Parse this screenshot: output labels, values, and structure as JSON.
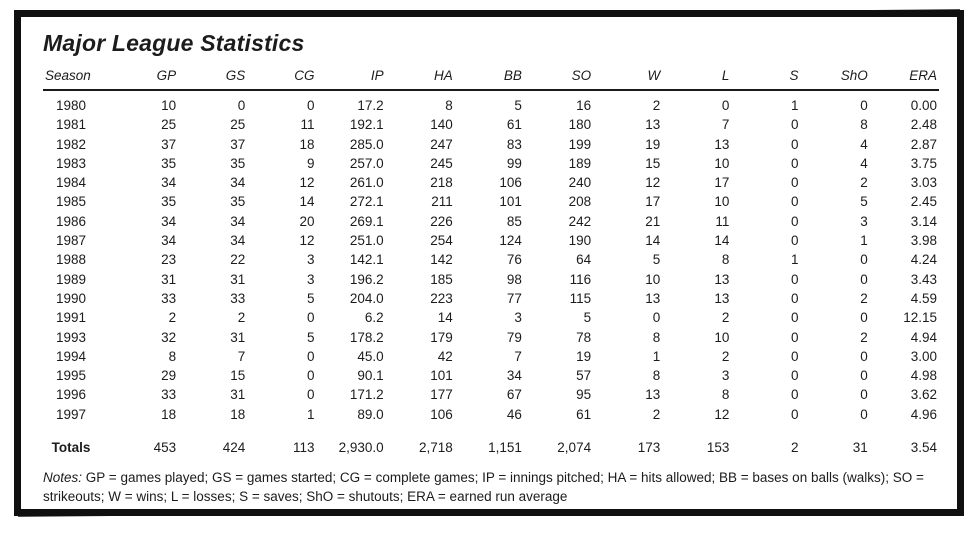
{
  "title": "Major League Statistics",
  "colors": {
    "frame": "#101010",
    "paper": "#ffffff",
    "text": "#1c1c1c"
  },
  "table": {
    "columns": [
      "Season",
      "GP",
      "GS",
      "CG",
      "IP",
      "HA",
      "BB",
      "SO",
      "W",
      "L",
      "S",
      "ShO",
      "ERA"
    ],
    "rows": [
      [
        "1980",
        "10",
        "0",
        "0",
        "17.2",
        "8",
        "5",
        "16",
        "2",
        "0",
        "1",
        "0",
        "0.00"
      ],
      [
        "1981",
        "25",
        "25",
        "11",
        "192.1",
        "140",
        "61",
        "180",
        "13",
        "7",
        "0",
        "8",
        "2.48"
      ],
      [
        "1982",
        "37",
        "37",
        "18",
        "285.0",
        "247",
        "83",
        "199",
        "19",
        "13",
        "0",
        "4",
        "2.87"
      ],
      [
        "1983",
        "35",
        "35",
        "9",
        "257.0",
        "245",
        "99",
        "189",
        "15",
        "10",
        "0",
        "4",
        "3.75"
      ],
      [
        "1984",
        "34",
        "34",
        "12",
        "261.0",
        "218",
        "106",
        "240",
        "12",
        "17",
        "0",
        "2",
        "3.03"
      ],
      [
        "1985",
        "35",
        "35",
        "14",
        "272.1",
        "211",
        "101",
        "208",
        "17",
        "10",
        "0",
        "5",
        "2.45"
      ],
      [
        "1986",
        "34",
        "34",
        "20",
        "269.1",
        "226",
        "85",
        "242",
        "21",
        "11",
        "0",
        "3",
        "3.14"
      ],
      [
        "1987",
        "34",
        "34",
        "12",
        "251.0",
        "254",
        "124",
        "190",
        "14",
        "14",
        "0",
        "1",
        "3.98"
      ],
      [
        "1988",
        "23",
        "22",
        "3",
        "142.1",
        "142",
        "76",
        "64",
        "5",
        "8",
        "1",
        "0",
        "4.24"
      ],
      [
        "1989",
        "31",
        "31",
        "3",
        "196.2",
        "185",
        "98",
        "116",
        "10",
        "13",
        "0",
        "0",
        "3.43"
      ],
      [
        "1990",
        "33",
        "33",
        "5",
        "204.0",
        "223",
        "77",
        "115",
        "13",
        "13",
        "0",
        "2",
        "4.59"
      ],
      [
        "1991",
        "2",
        "2",
        "0",
        "6.2",
        "14",
        "3",
        "5",
        "0",
        "2",
        "0",
        "0",
        "12.15"
      ],
      [
        "1993",
        "32",
        "31",
        "5",
        "178.2",
        "179",
        "79",
        "78",
        "8",
        "10",
        "0",
        "2",
        "4.94"
      ],
      [
        "1994",
        "8",
        "7",
        "0",
        "45.0",
        "42",
        "7",
        "19",
        "1",
        "2",
        "0",
        "0",
        "3.00"
      ],
      [
        "1995",
        "29",
        "15",
        "0",
        "90.1",
        "101",
        "34",
        "57",
        "8",
        "3",
        "0",
        "0",
        "4.98"
      ],
      [
        "1996",
        "33",
        "31",
        "0",
        "171.2",
        "177",
        "67",
        "95",
        "13",
        "8",
        "0",
        "0",
        "3.62"
      ],
      [
        "1997",
        "18",
        "18",
        "1",
        "89.0",
        "106",
        "46",
        "61",
        "2",
        "12",
        "0",
        "0",
        "4.96"
      ]
    ],
    "totals": [
      "Totals",
      "453",
      "424",
      "113",
      "2,930.0",
      "2,718",
      "1,151",
      "2,074",
      "173",
      "153",
      "2",
      "31",
      "3.54"
    ]
  },
  "notes": {
    "label": "Notes:",
    "body": "GP = games played; GS = games started; CG = complete games; IP = innings pitched; HA = hits allowed; BB = bases on balls (walks); SO = strikeouts; W = wins; L = losses; S = saves; ShO = shutouts; ERA = earned run average"
  }
}
